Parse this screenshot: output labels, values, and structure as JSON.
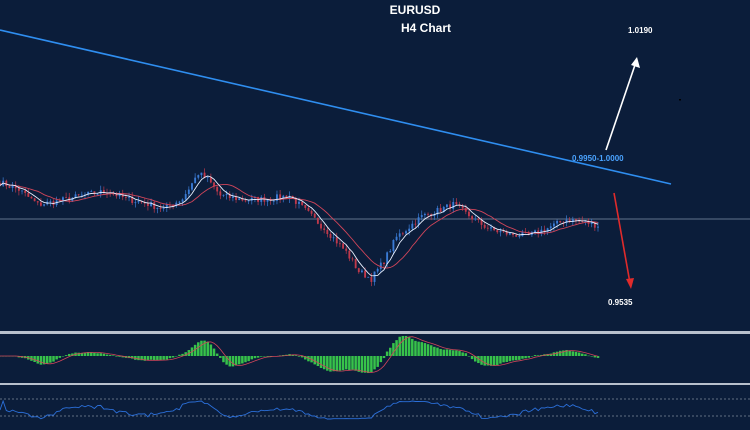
{
  "chart_data": {
    "type": "candlestick",
    "title": "EURUSD",
    "subtitle": "H4 Chart",
    "annotations": {
      "upper_target": "1.0190",
      "resistance_zone": "0.9950-1.0000",
      "lower_target": "0.9535"
    },
    "colors": {
      "background": "#0b1d3a",
      "bull_candle": "#3a7bd5",
      "bear_candle": "#c0394b",
      "trendline": "#2f8ef0",
      "ma_fast": "#e8f0ff",
      "ma_slow": "#d0455a",
      "up_arrow": "#ffffff",
      "down_arrow": "#e02b2b",
      "histogram": "#37c24a",
      "rsi": "#2b6fd9",
      "resistance_label": "#4aa3ff"
    },
    "price_anchors": [
      [
        0,
        0.9925
      ],
      [
        6,
        0.99
      ],
      [
        12,
        0.985
      ],
      [
        18,
        0.986
      ],
      [
        26,
        0.988
      ],
      [
        34,
        0.9895
      ],
      [
        40,
        0.987
      ],
      [
        46,
        0.9855
      ],
      [
        52,
        0.9835
      ],
      [
        58,
        0.987
      ],
      [
        63,
        0.9955
      ],
      [
        66,
        0.9935
      ],
      [
        70,
        0.988
      ],
      [
        78,
        0.9865
      ],
      [
        86,
        0.987
      ],
      [
        92,
        0.988
      ],
      [
        98,
        0.982
      ],
      [
        104,
        0.976
      ],
      [
        110,
        0.969
      ],
      [
        114,
        0.9625
      ],
      [
        118,
        0.96
      ],
      [
        122,
        0.966
      ],
      [
        126,
        0.974
      ],
      [
        130,
        0.9775
      ],
      [
        134,
        0.981
      ],
      [
        138,
        0.9825
      ],
      [
        144,
        0.985
      ],
      [
        148,
        0.982
      ],
      [
        152,
        0.979
      ],
      [
        156,
        0.9765
      ],
      [
        162,
        0.975
      ],
      [
        168,
        0.9745
      ],
      [
        174,
        0.977
      ],
      [
        180,
        0.98
      ],
      [
        186,
        0.979
      ],
      [
        190,
        0.978
      ]
    ],
    "candle_count": 191
  }
}
